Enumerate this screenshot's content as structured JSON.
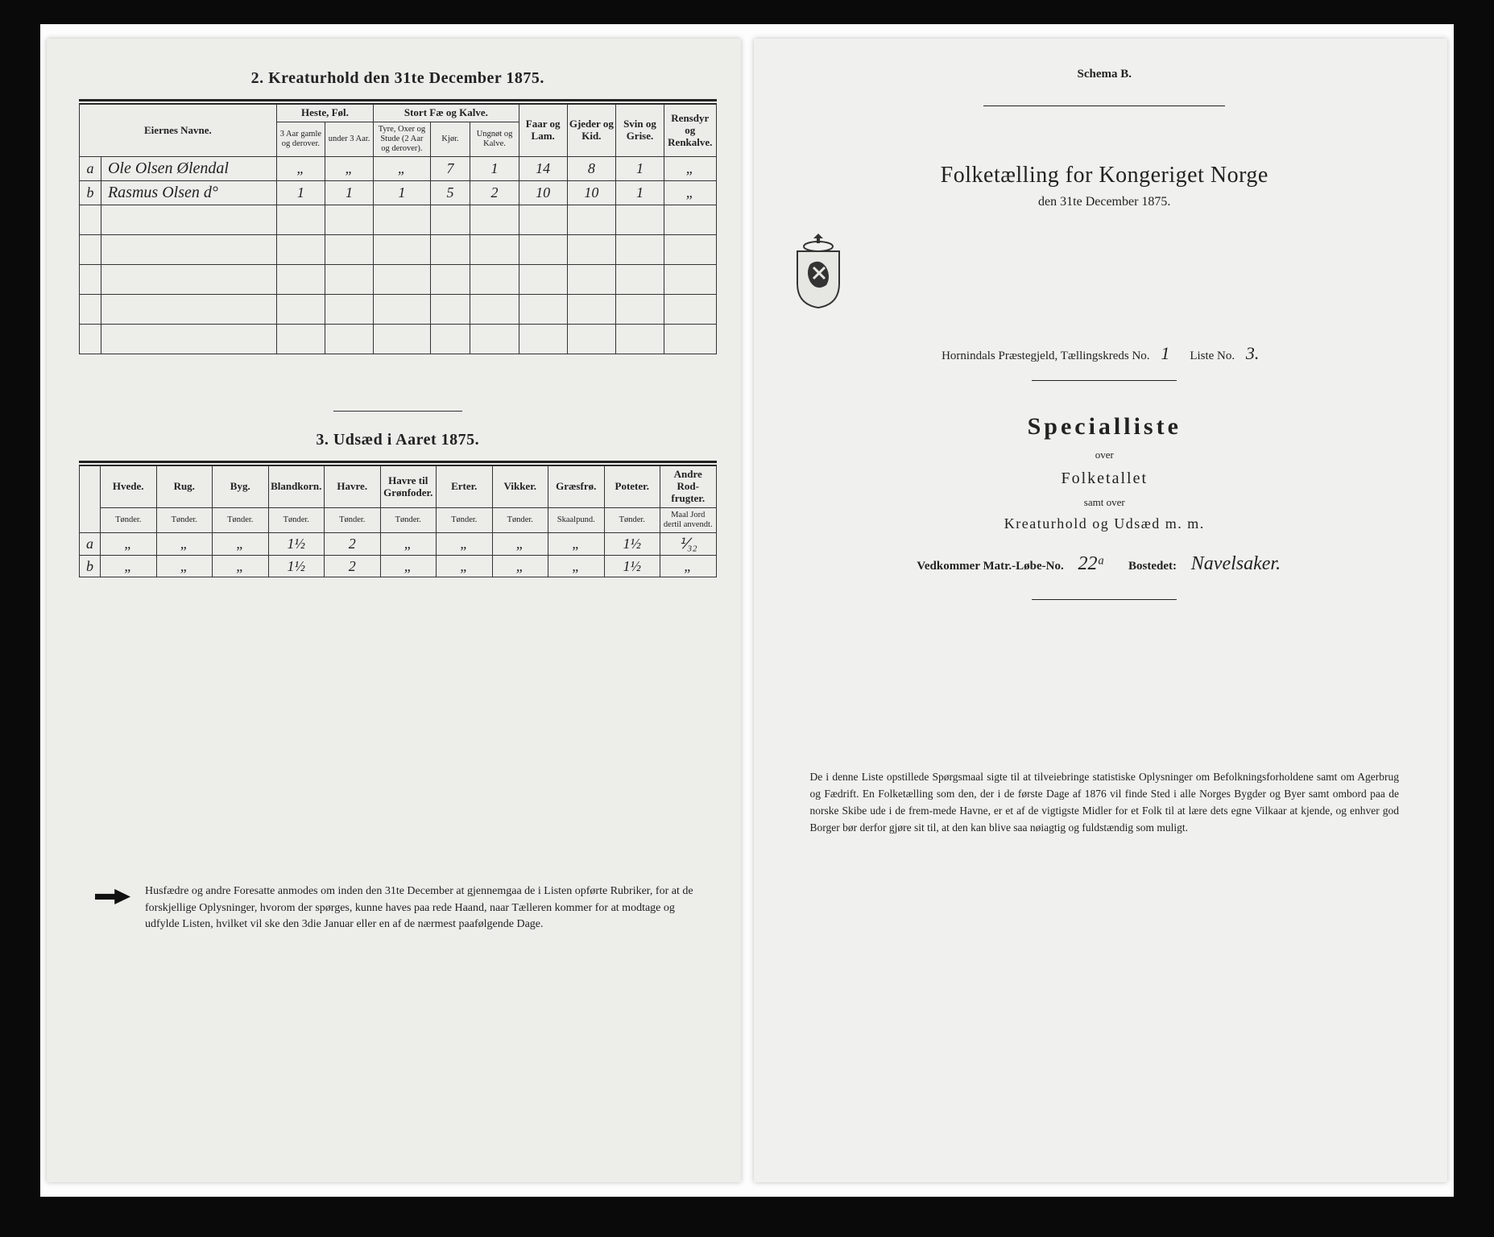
{
  "left": {
    "section2": {
      "title": "2.  Kreaturhold den 31te December 1875.",
      "group_headers": [
        "Eiernes Navne.",
        "Heste, Føl.",
        "Stort Fæ og Kalve.",
        "Faar og Lam.",
        "Gjeder og Kid.",
        "Svin og Grise.",
        "Rensdyr og Renkalve."
      ],
      "sub_headers": [
        "3 Aar gamle og derover.",
        "under 3 Aar.",
        "Tyre, Oxer og Stude (2 Aar og derover).",
        "Kjør.",
        "Ungnøt og Kalve."
      ],
      "rows": [
        {
          "idx": "a",
          "name": "Ole Olsen Ølendal",
          "cells": [
            "„",
            "„",
            "„",
            "7",
            "1",
            "14",
            "8",
            "1",
            "„"
          ]
        },
        {
          "idx": "b",
          "name": "Rasmus Olsen  d°",
          "cells": [
            "1",
            "1",
            "1",
            "5",
            "2",
            "10",
            "10",
            "1",
            "„"
          ]
        }
      ]
    },
    "section3": {
      "title": "3.  Udsæd i Aaret 1875.",
      "headers": [
        "Hvede.",
        "Rug.",
        "Byg.",
        "Blandkorn.",
        "Havre.",
        "Havre til Grønfoder.",
        "Erter.",
        "Vikker.",
        "Græsfrø.",
        "Poteter.",
        "Andre Rod-frugter."
      ],
      "units": [
        "Tønder.",
        "Tønder.",
        "Tønder.",
        "Tønder.",
        "Tønder.",
        "Tønder.",
        "Tønder.",
        "Tønder.",
        "Skaalpund.",
        "Tønder.",
        "Maal Jord dertil anvendt."
      ],
      "rows": [
        {
          "idx": "a",
          "cells": [
            "„",
            "„",
            "„",
            "1½",
            "2",
            "„",
            "„",
            "„",
            "„",
            "1½",
            "⅟₃₂"
          ]
        },
        {
          "idx": "b",
          "cells": [
            "„",
            "„",
            "„",
            "1½",
            "2",
            "„",
            "„",
            "„",
            "„",
            "1½",
            "„"
          ]
        }
      ]
    },
    "footnote": "Husfædre og andre Foresatte anmodes om inden den 31te December at gjennemgaa de i Listen opførte Rubriker, for at de forskjellige Oplysninger, hvorom der spørges, kunne haves paa rede Haand, naar Tælleren kommer for at modtage og udfylde Listen, hvilket vil ske den 3die Januar eller en af de nærmest paafølgende Dage."
  },
  "right": {
    "schema": "Schema B.",
    "title": "Folketælling for Kongeriget Norge",
    "subtitle": "den 31te December 1875.",
    "parish_label": "Hornindals Præstegjeld, Tællingskreds No.",
    "parish_no": "1",
    "list_label": "Liste No.",
    "list_no": "3.",
    "special": "Specialliste",
    "over1": "over",
    "folketallet": "Folketallet",
    "samt": "samt over",
    "kreatur": "Kreaturhold og Udsæd m. m.",
    "vedk_label1": "Vedkommer Matr.-Løbe-No.",
    "matr_no": "22ᵃ",
    "vedk_label2": "Bostedet:",
    "bosted": "Navelsaker.",
    "bottom": "De i denne Liste opstillede Spørgsmaal sigte til at tilveiebringe statistiske Oplysninger om Befolkningsforholdene samt om Agerbrug og Fædrift.  En Folketælling som den, der i de første Dage af 1876 vil finde Sted i alle Norges Bygder og Byer samt ombord paa de norske Skibe ude i de frem-mede Havne, er et af de vigtigste Midler for et Folk til at lære dets egne Vilkaar at kjende, og enhver god Borger bør derfor gjøre sit til, at den kan blive saa nøiagtig og fuldstændig som muligt."
  },
  "colors": {
    "paper": "#ededea",
    "ink": "#222222",
    "frame": "#0a0a0a"
  }
}
